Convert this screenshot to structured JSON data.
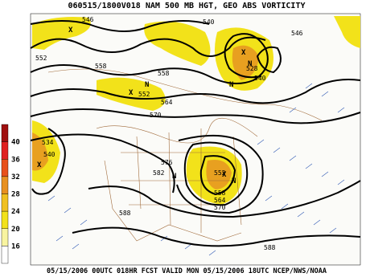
{
  "header": {
    "title": "060515/1800V018 NAM 500 MB HGT, GEO ABS VORTICITY"
  },
  "footer": {
    "text": "05/15/2006 00UTC 018HR FCST VALID MON 05/15/2006 18UTC  NCEP/NWS/NOAA"
  },
  "colorbar": {
    "labels": [
      "40",
      "36",
      "32",
      "28",
      "24",
      "20",
      "16"
    ],
    "colors": [
      "#a01010",
      "#e02020",
      "#e8501a",
      "#e89020",
      "#f0c020",
      "#f2e21a",
      "#f8f4a0",
      "#ffffff"
    ]
  },
  "contour_labels": [
    "546",
    "540",
    "546",
    "552",
    "558",
    "558",
    "552",
    "528",
    "540",
    "564",
    "570",
    "534",
    "540",
    "576",
    "582",
    "552",
    "558",
    "564",
    "570",
    "588",
    "588"
  ],
  "markers": [
    "X",
    "X",
    "N",
    "N",
    "X",
    "N",
    "X",
    "N",
    "X",
    "N"
  ]
}
